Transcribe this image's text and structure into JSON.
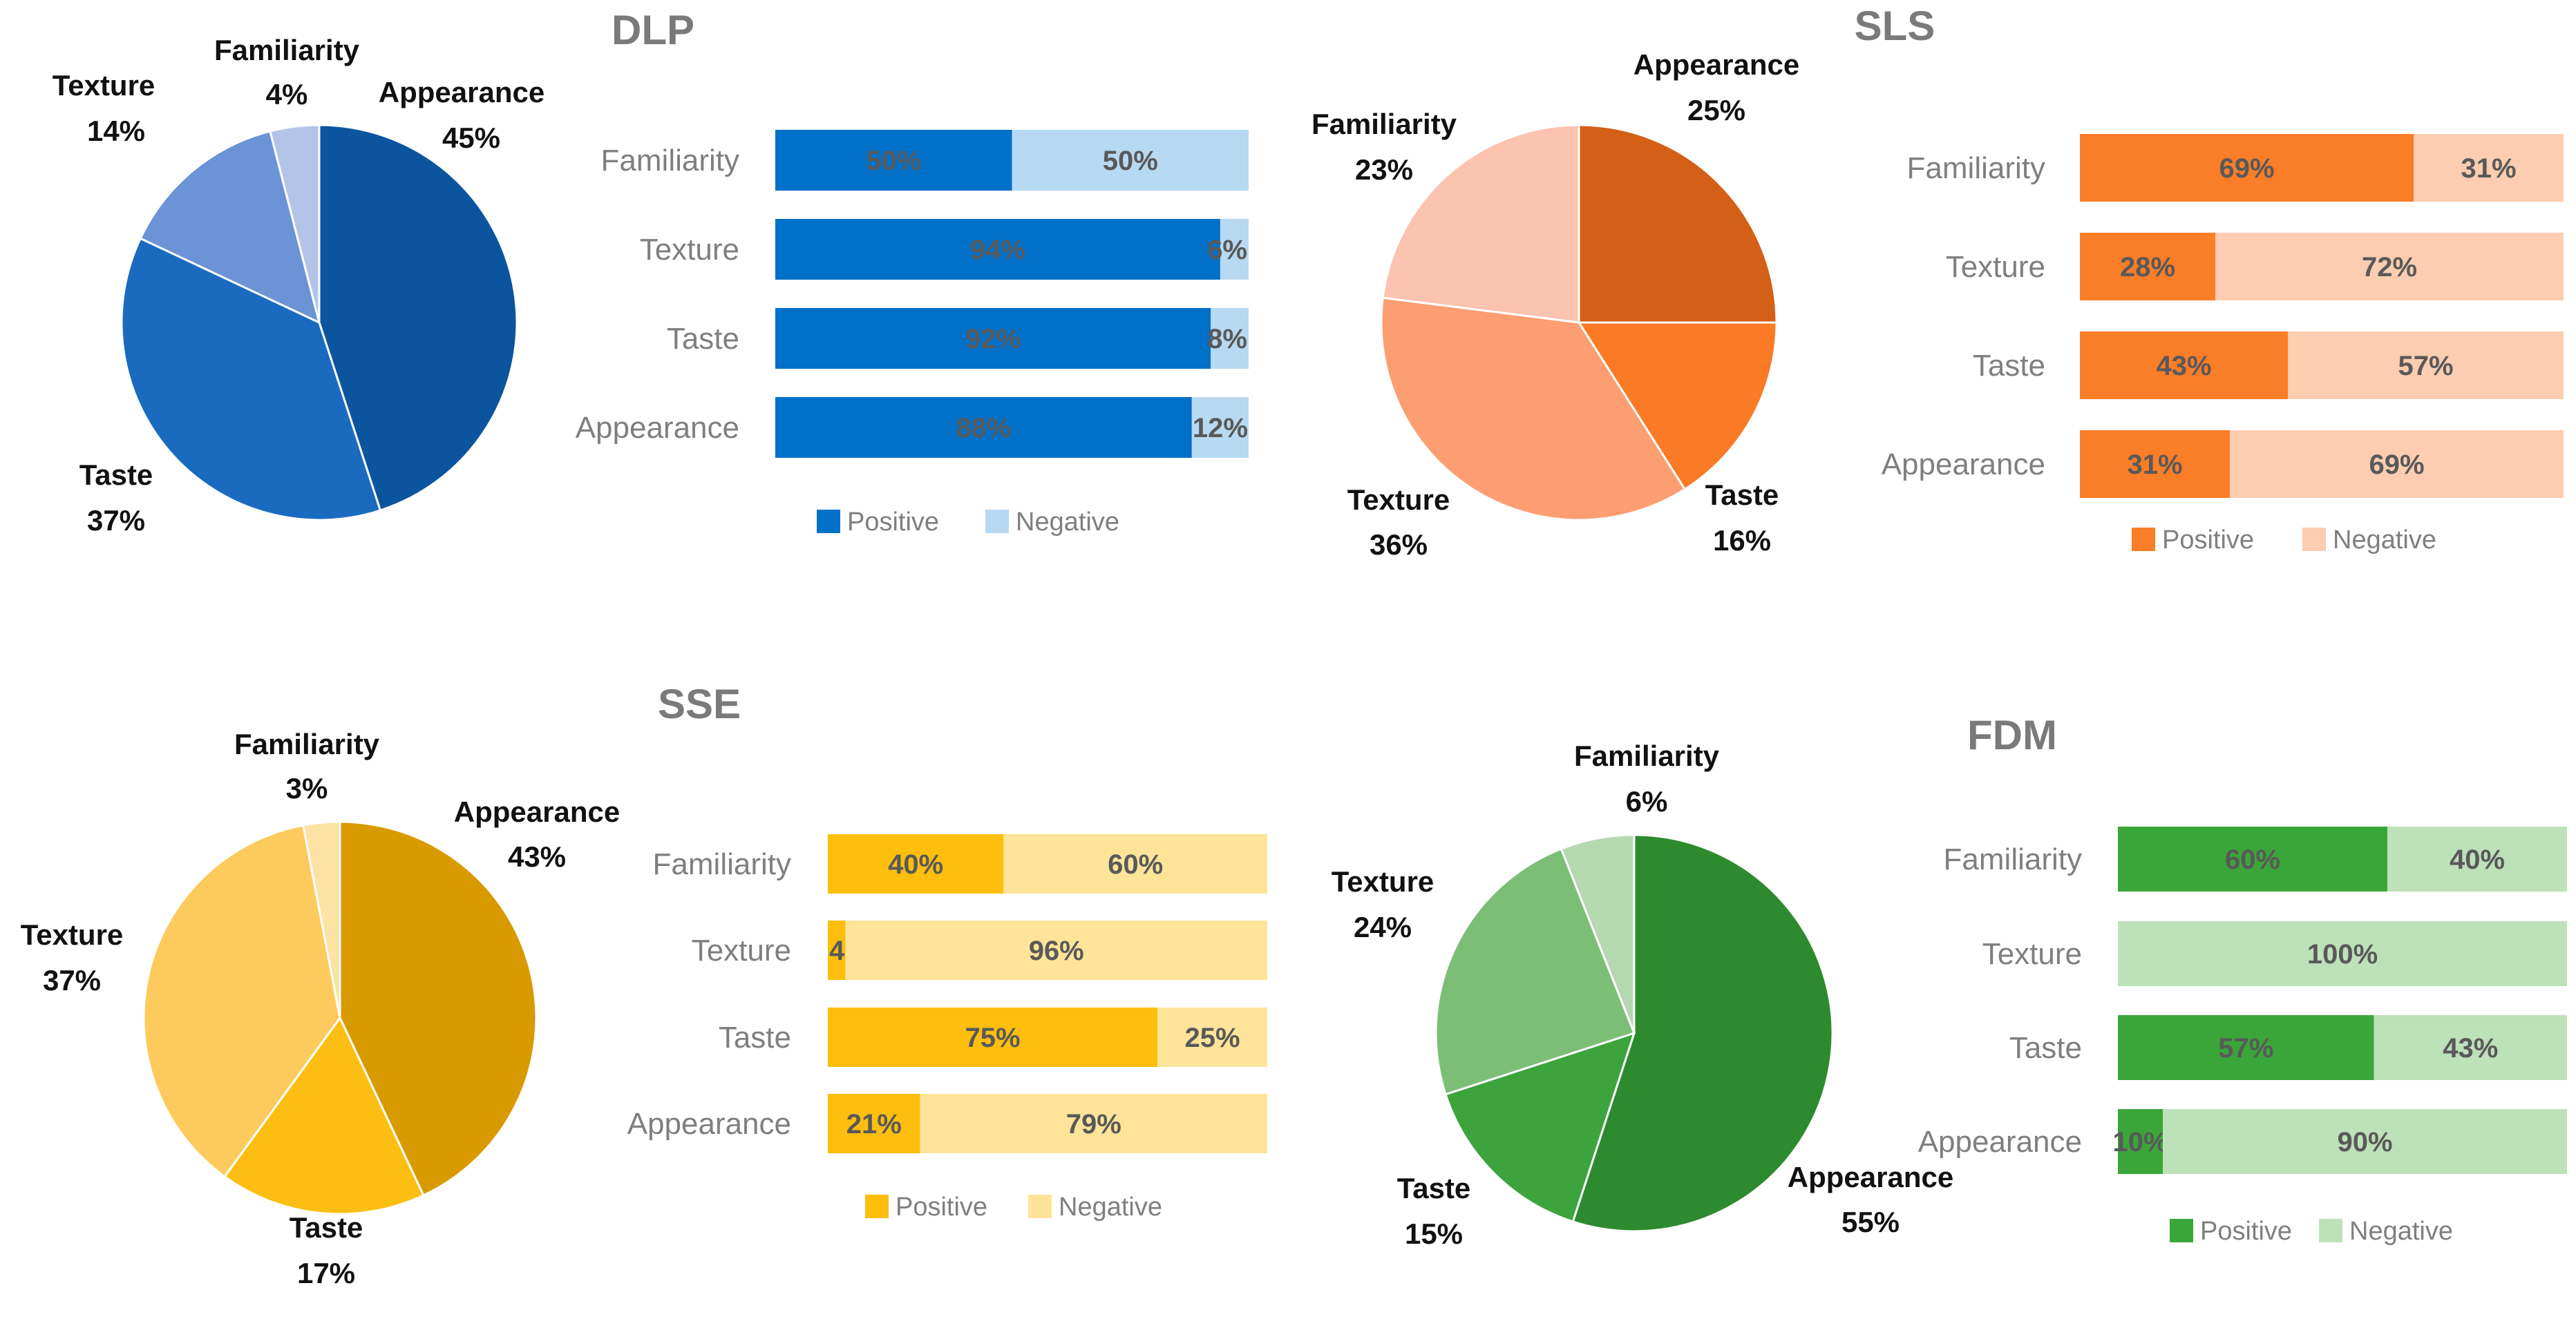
{
  "chart_data": [
    {
      "id": "dlp",
      "title": "DLP",
      "pie": {
        "type": "pie",
        "slices": [
          {
            "label": "Appearance",
            "value": 45,
            "display": "45%",
            "color": "#0B559F"
          },
          {
            "label": "Taste",
            "value": 37,
            "display": "37%",
            "color": "#1A6BC0"
          },
          {
            "label": "Texture",
            "value": 14,
            "display": "14%",
            "color": "#6B93D6"
          },
          {
            "label": "Familiarity",
            "value": 4,
            "display": "4%",
            "color": "#B4C4E8"
          }
        ]
      },
      "bar": {
        "type": "bar",
        "stacked": true,
        "orientation": "horizontal",
        "categories": [
          "Familiarity",
          "Texture",
          "Taste",
          "Appearance"
        ],
        "series": [
          {
            "name": "Positive",
            "color": "#0070C8",
            "values": [
              50,
              94,
              92,
              88
            ],
            "labels": [
              "50%",
              "94%",
              "92%",
              "88%"
            ]
          },
          {
            "name": "Negative",
            "color": "#B7D9F1",
            "values": [
              50,
              6,
              8,
              12
            ],
            "labels": [
              "50%",
              "6%",
              "8%",
              "12%"
            ]
          }
        ],
        "xlim": [
          0,
          100
        ]
      }
    },
    {
      "id": "sls",
      "title": "SLS",
      "pie": {
        "type": "pie",
        "slices": [
          {
            "label": "Appearance",
            "value": 25,
            "display": "25%",
            "color": "#D45F17"
          },
          {
            "label": "Taste",
            "value": 16,
            "display": "16%",
            "color": "#FA7A25"
          },
          {
            "label": "Texture",
            "value": 36,
            "display": "36%",
            "color": "#FC9E72"
          },
          {
            "label": "Familiarity",
            "value": 23,
            "display": "23%",
            "color": "#FCC3B0"
          }
        ]
      },
      "bar": {
        "type": "bar",
        "stacked": true,
        "orientation": "horizontal",
        "categories": [
          "Familiarity",
          "Texture",
          "Taste",
          "Appearance"
        ],
        "series": [
          {
            "name": "Positive",
            "color": "#FA7D28",
            "values": [
              69,
              28,
              43,
              31
            ],
            "labels": [
              "69%",
              "28%",
              "43%",
              "31%"
            ]
          },
          {
            "name": "Negative",
            "color": "#FCCDB0",
            "values": [
              31,
              72,
              57,
              69
            ],
            "labels": [
              "31%",
              "72%",
              "57%",
              "69%"
            ]
          }
        ],
        "xlim": [
          0,
          100
        ]
      }
    },
    {
      "id": "sse",
      "title": "SSE",
      "pie": {
        "type": "pie",
        "slices": [
          {
            "label": "Appearance",
            "value": 43,
            "display": "43%",
            "color": "#D99A00"
          },
          {
            "label": "Taste",
            "value": 17,
            "display": "17%",
            "color": "#FDBE13"
          },
          {
            "label": "Texture",
            "value": 37,
            "display": "37%",
            "color": "#FDCB5D"
          },
          {
            "label": "Familiarity",
            "value": 3,
            "display": "3%",
            "color": "#FDE2A5"
          }
        ]
      },
      "bar": {
        "type": "bar",
        "stacked": true,
        "orientation": "horizontal",
        "categories": [
          "Familiarity",
          "Texture",
          "Taste",
          "Appearance"
        ],
        "series": [
          {
            "name": "Positive",
            "color": "#FDBE0E",
            "values": [
              40,
              4,
              75,
              21
            ],
            "labels": [
              "40%",
              "4%",
              "75%",
              "21%"
            ]
          },
          {
            "name": "Negative",
            "color": "#FDE499",
            "values": [
              60,
              96,
              25,
              79
            ],
            "labels": [
              "60%",
              "96%",
              "25%",
              "79%"
            ]
          }
        ],
        "xlim": [
          0,
          100
        ]
      }
    },
    {
      "id": "fdm",
      "title": "FDM",
      "pie": {
        "type": "pie",
        "slices": [
          {
            "label": "Appearance",
            "value": 55,
            "display": "55%",
            "color": "#2E8A2E"
          },
          {
            "label": "Taste",
            "value": 15,
            "display": "15%",
            "color": "#3DA33D"
          },
          {
            "label": "Texture",
            "value": 24,
            "display": "24%",
            "color": "#7DBE76"
          },
          {
            "label": "Familiarity",
            "value": 6,
            "display": "6%",
            "color": "#B5D8B0"
          }
        ]
      },
      "bar": {
        "type": "bar",
        "stacked": true,
        "orientation": "horizontal",
        "categories": [
          "Familiarity",
          "Texture",
          "Taste",
          "Appearance"
        ],
        "series": [
          {
            "name": "Positive",
            "color": "#3AA63A",
            "values": [
              60,
              0,
              57,
              10
            ],
            "labels": [
              "60%",
              "",
              "57%",
              "10%"
            ]
          },
          {
            "name": "Negative",
            "color": "#BDE1B8",
            "values": [
              40,
              100,
              43,
              90
            ],
            "labels": [
              "40%",
              "100%",
              "43%",
              "90%"
            ]
          }
        ],
        "xlim": [
          0,
          100
        ]
      }
    }
  ]
}
